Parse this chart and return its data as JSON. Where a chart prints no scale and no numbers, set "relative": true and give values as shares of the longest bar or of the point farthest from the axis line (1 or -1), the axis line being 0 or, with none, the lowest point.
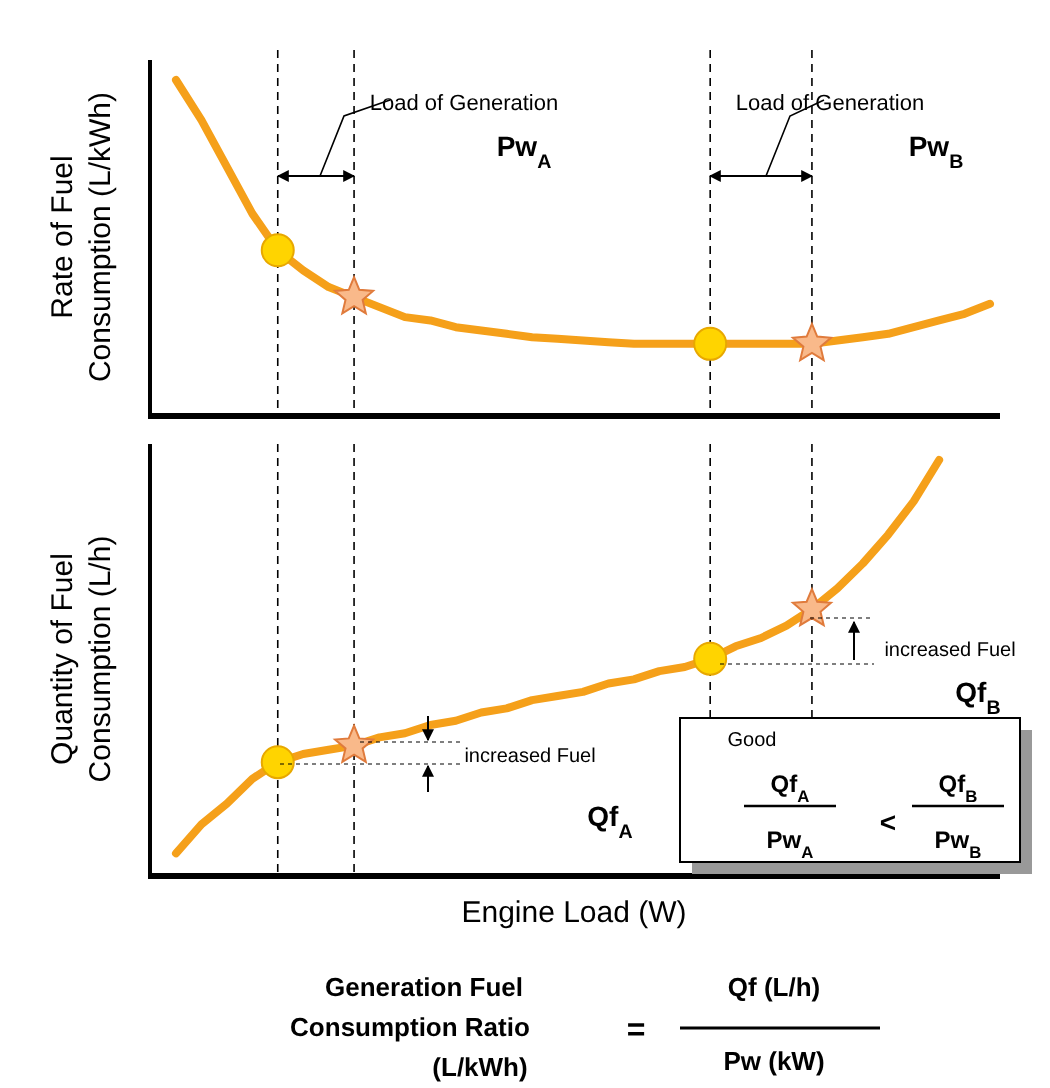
{
  "chart_data": [
    {
      "type": "line",
      "relative": true,
      "ylabel": "Rate of Fuel\nConsumption  (L/kWh)",
      "line_style": "solid",
      "categories": [
        null,
        null,
        null,
        null,
        null,
        null,
        null,
        null,
        null,
        null,
        null,
        null,
        null,
        null,
        null,
        null,
        null,
        null,
        null,
        null,
        null,
        null,
        null,
        null,
        null,
        null,
        null,
        null,
        null,
        null,
        null,
        null,
        null
      ],
      "series": [
        {
          "type": "line",
          "marker": "none",
          "color": "#f5a01a",
          "values": [
            1.0,
            0.88,
            0.74,
            0.6,
            0.49,
            0.43,
            0.38,
            0.35,
            0.32,
            0.29,
            0.28,
            0.26,
            0.25,
            0.24,
            0.23,
            0.225,
            0.22,
            0.215,
            0.21,
            0.21,
            0.21,
            0.21,
            0.21,
            0.21,
            0.21,
            0.21,
            0.22,
            0.23,
            0.24,
            0.26,
            0.28,
            0.3,
            0.33
          ]
        }
      ],
      "grid": "x",
      "annotations": [
        "Load of Generation",
        "Pw$_{A}$",
        "Load of Generation",
        "Pw$_{B}$"
      ]
    },
    {
      "type": "line",
      "relative": true,
      "ylabel": "Quantity  of Fuel\nConsumption (L/h)",
      "xlabel": "Engine Load (W)",
      "line_style": "solid",
      "categories": [
        null,
        null,
        null,
        null,
        null,
        null,
        null,
        null,
        null,
        null,
        null,
        null,
        null,
        null,
        null,
        null,
        null,
        null,
        null,
        null,
        null,
        null,
        null,
        null,
        null,
        null,
        null,
        null,
        null,
        null,
        null,
        null,
        null
      ],
      "series": [
        {
          "type": "line",
          "marker": "none",
          "color": "#f5a01a",
          "values": [
            0.05,
            0.12,
            0.17,
            0.23,
            0.27,
            0.29,
            0.3,
            0.31,
            0.33,
            0.34,
            0.36,
            0.37,
            0.39,
            0.4,
            0.42,
            0.43,
            0.44,
            0.46,
            0.47,
            0.49,
            0.5,
            0.52,
            0.55,
            0.57,
            0.6,
            0.64,
            0.69,
            0.75,
            0.82,
            0.9,
            1.0,
            null,
            null
          ]
        }
      ],
      "grid": "x",
      "annotations": [
        "increased Fuel",
        "Qf$_{A}$",
        "increased Fuel",
        "Qf$_{B}$",
        "Good",
        "Qf$_{A}$",
        "Pw$_{A}$",
        "<",
        "Qf$_{B}$",
        "Pw$_{B}$",
        "Generation Fuel",
        "Consumption Ratio",
        "(L/kWh)",
        "=",
        "Qf (L/h)",
        "Pw (kW)"
      ]
    }
  ]
}
